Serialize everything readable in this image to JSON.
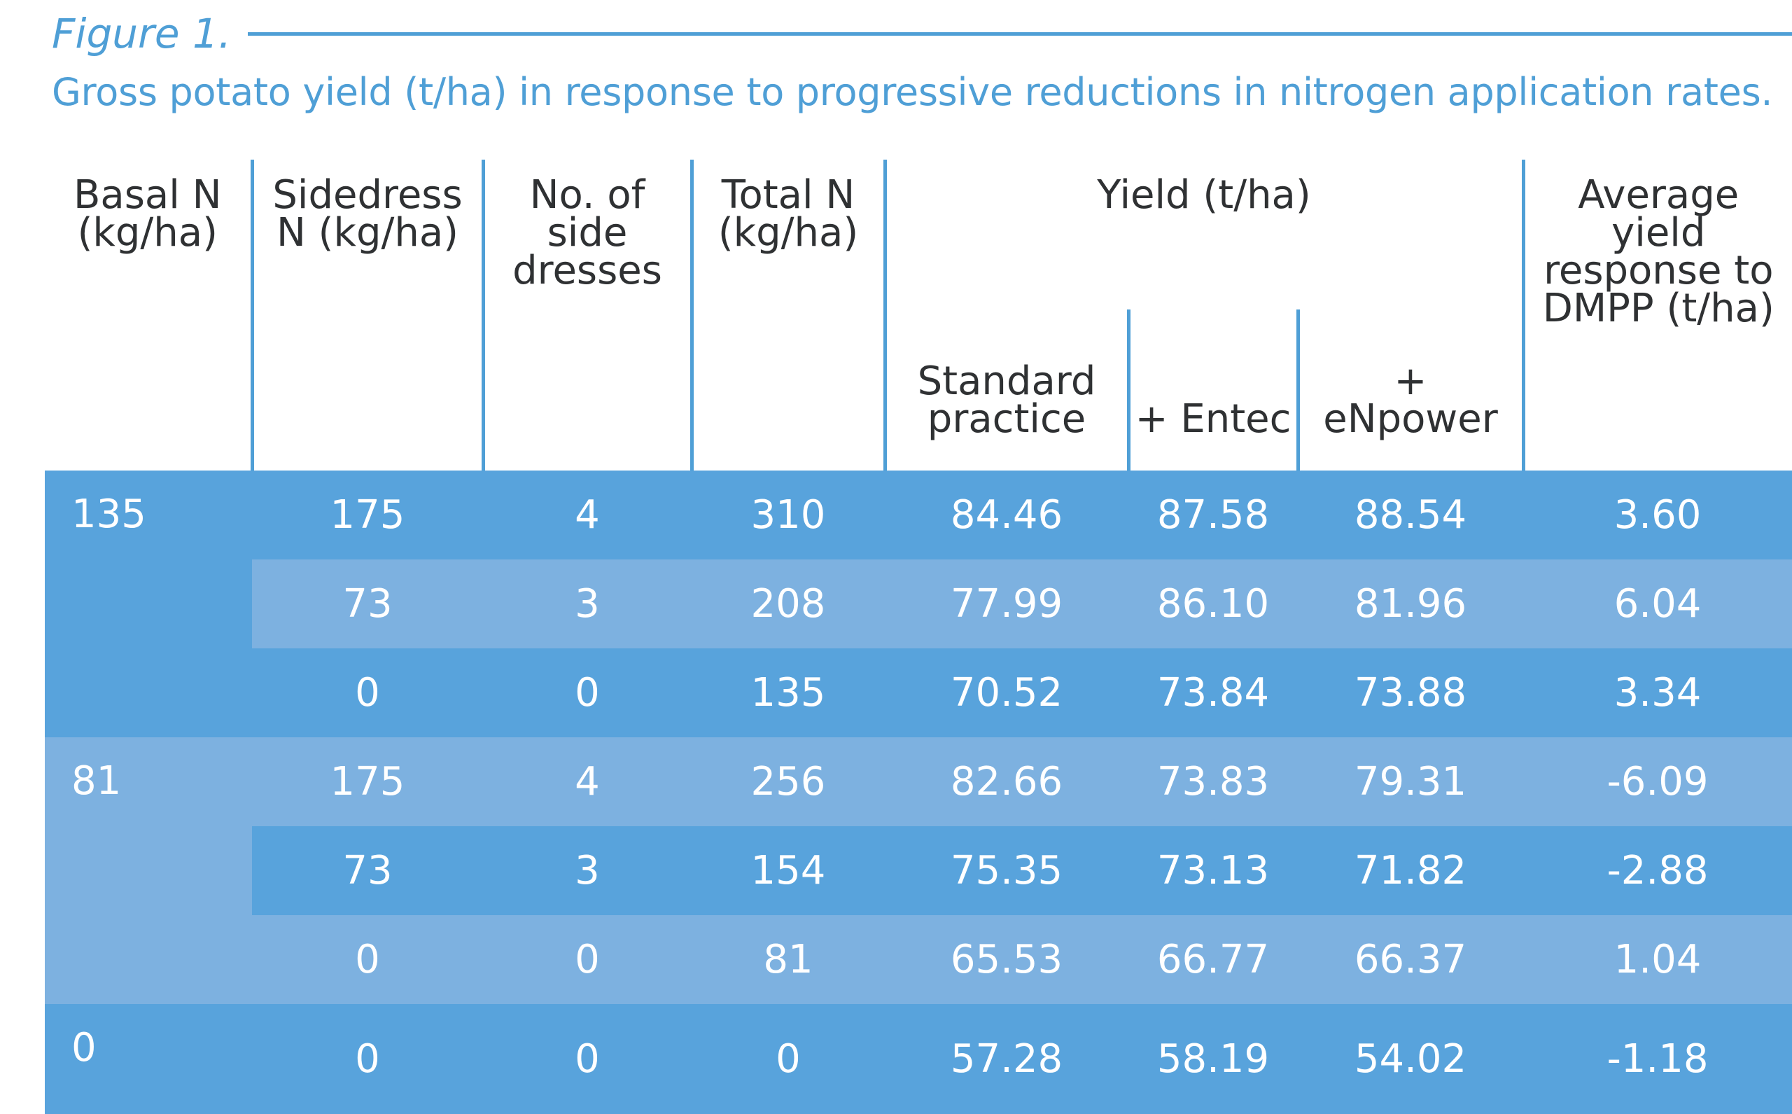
{
  "figure": {
    "label": "Figure 1.",
    "title": "Gross potato yield (t/ha) in response to progressive reductions in nitrogen application rates."
  },
  "table": {
    "headers": {
      "basal_n": "Basal N (kg/ha)",
      "sidedress_n": "Sidedress N (kg/ha)",
      "no_side_dresses": "No. of side dresses",
      "total_n": "Total N (kg/ha)",
      "yield": "Yield (t/ha)",
      "standard_practice": "Standard practice",
      "entec": "+ Entec",
      "enpower": "+ eNpower",
      "avg_response": "Average yield response to DMPP (t/ha)"
    },
    "groups": [
      {
        "basal_n": "135",
        "rows": [
          {
            "sidedress": "175",
            "dresses": "4",
            "total": "310",
            "standard": "84.46",
            "entec": "87.58",
            "enpower": "88.54",
            "avg": "3.60"
          },
          {
            "sidedress": "73",
            "dresses": "3",
            "total": "208",
            "standard": "77.99",
            "entec": "86.10",
            "enpower": "81.96",
            "avg": "6.04"
          },
          {
            "sidedress": "0",
            "dresses": "0",
            "total": "135",
            "standard": "70.52",
            "entec": "73.84",
            "enpower": "73.88",
            "avg": "3.34"
          }
        ]
      },
      {
        "basal_n": "81",
        "rows": [
          {
            "sidedress": "175",
            "dresses": "4",
            "total": "256",
            "standard": "82.66",
            "entec": "73.83",
            "enpower": "79.31",
            "avg": "-6.09"
          },
          {
            "sidedress": "73",
            "dresses": "3",
            "total": "154",
            "standard": "75.35",
            "entec": "73.13",
            "enpower": "71.82",
            "avg": "-2.88"
          },
          {
            "sidedress": "0",
            "dresses": "0",
            "total": "81",
            "standard": "65.53",
            "entec": "66.77",
            "enpower": "66.37",
            "avg": "1.04"
          }
        ]
      },
      {
        "basal_n": "0",
        "rows": [
          {
            "sidedress": "0",
            "dresses": "0",
            "total": "0",
            "standard": "57.28",
            "entec": "58.19",
            "enpower": "54.02",
            "avg": "-1.18"
          }
        ]
      }
    ]
  },
  "colors": {
    "accent": "#4f9fd6",
    "row_dark": "#58a3dc",
    "row_light": "#7db1e0",
    "header_text": "#2f3133",
    "cell_text": "#ffffff"
  }
}
